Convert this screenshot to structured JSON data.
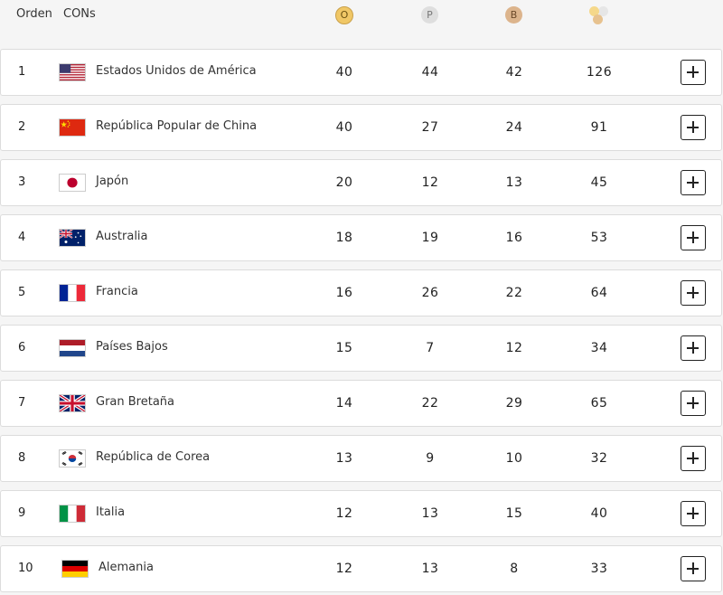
{
  "header": {
    "rank_label": "Orden",
    "country_label": "CONs",
    "gold_label": "O",
    "silver_label": "P",
    "bronze_label": "B",
    "total_icon": "medals-total-icon"
  },
  "colors": {
    "gold": "#f0c766",
    "silver": "#dedede",
    "bronze": "#dcb48c"
  },
  "rows": [
    {
      "rank": "1",
      "country": "Estados Unidos de América",
      "flag": "usa-flag-icon",
      "gold": "40",
      "silver": "44",
      "bronze": "42",
      "total": "126"
    },
    {
      "rank": "2",
      "country": "República Popular de China",
      "flag": "china-flag-icon",
      "gold": "40",
      "silver": "27",
      "bronze": "24",
      "total": "91"
    },
    {
      "rank": "3",
      "country": "Japón",
      "flag": "japan-flag-icon",
      "gold": "20",
      "silver": "12",
      "bronze": "13",
      "total": "45"
    },
    {
      "rank": "4",
      "country": "Australia",
      "flag": "australia-flag-icon",
      "gold": "18",
      "silver": "19",
      "bronze": "16",
      "total": "53"
    },
    {
      "rank": "5",
      "country": "Francia",
      "flag": "france-flag-icon",
      "gold": "16",
      "silver": "26",
      "bronze": "22",
      "total": "64"
    },
    {
      "rank": "6",
      "country": "Países Bajos",
      "flag": "netherlands-flag-icon",
      "gold": "15",
      "silver": "7",
      "bronze": "12",
      "total": "34"
    },
    {
      "rank": "7",
      "country": "Gran Bretaña",
      "flag": "great-britain-flag-icon",
      "gold": "14",
      "silver": "22",
      "bronze": "29",
      "total": "65"
    },
    {
      "rank": "8",
      "country": "República de Corea",
      "flag": "korea-flag-icon",
      "gold": "13",
      "silver": "9",
      "bronze": "10",
      "total": "32"
    },
    {
      "rank": "9",
      "country": "Italia",
      "flag": "italy-flag-icon",
      "gold": "12",
      "silver": "13",
      "bronze": "15",
      "total": "40"
    },
    {
      "rank": "10",
      "country": "Alemania",
      "flag": "germany-flag-icon",
      "gold": "12",
      "silver": "13",
      "bronze": "8",
      "total": "33"
    }
  ]
}
